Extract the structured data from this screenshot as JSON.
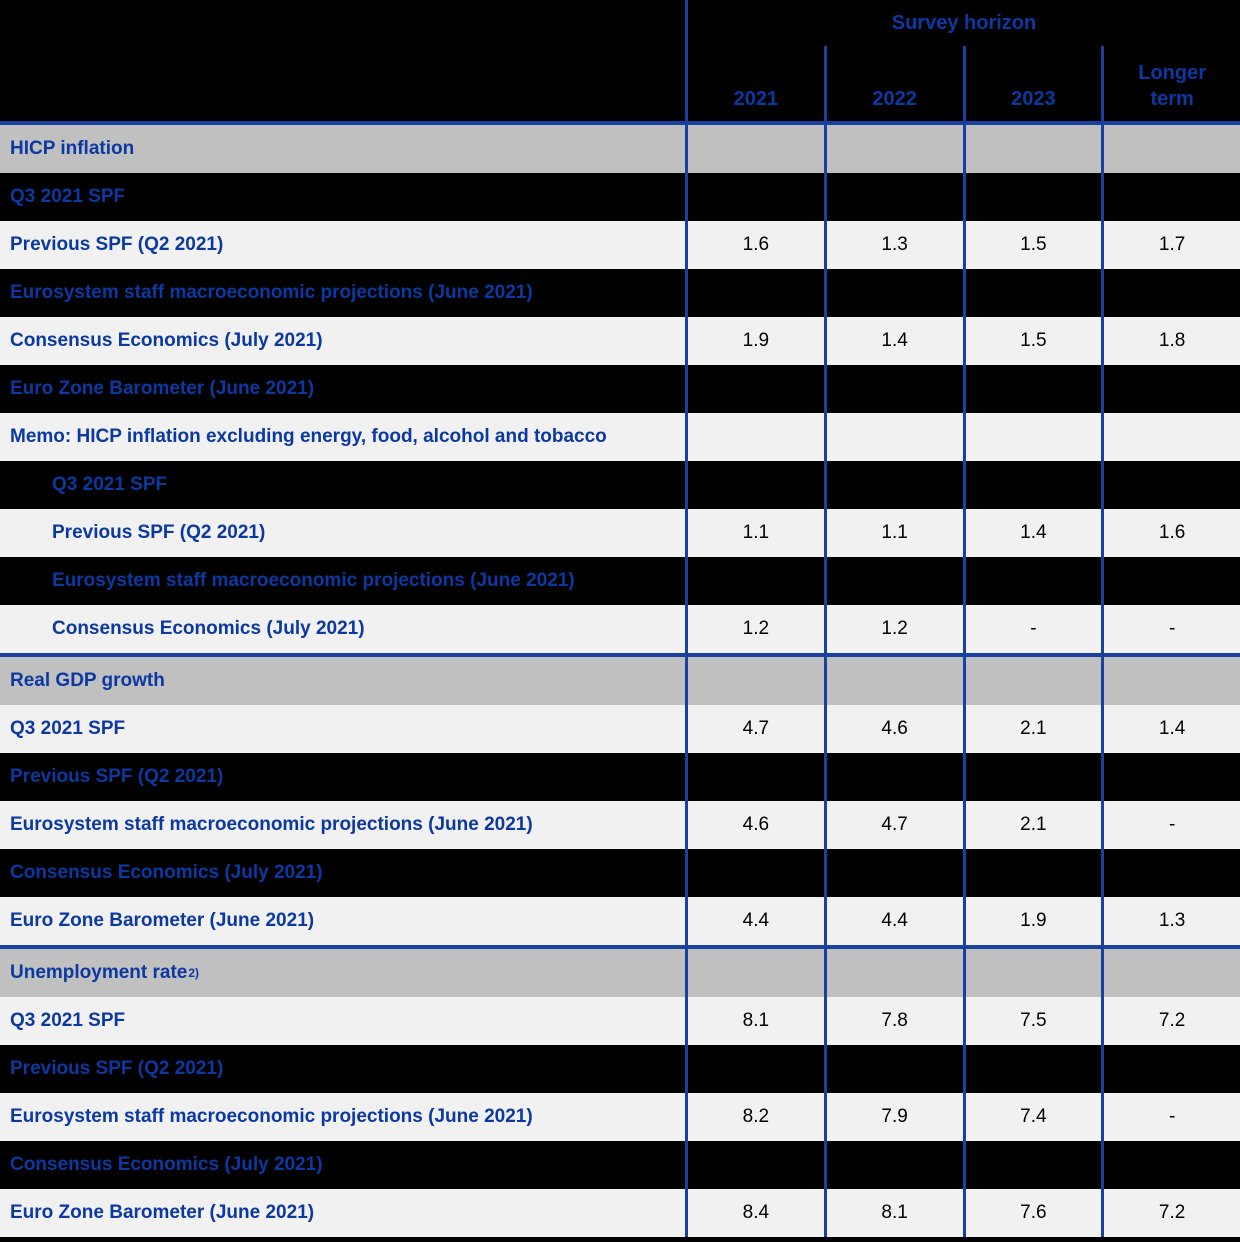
{
  "colors": {
    "accent_blue_text": "#0c38a2",
    "divider_blue": "#17409f",
    "section_row_gray": "#c0c0c0",
    "data_row_light": "#f1f1f1",
    "row_black": "#000000",
    "value_text": "#000000"
  },
  "header": {
    "title": "Survey horizon",
    "columns": [
      "2021",
      "2022",
      "2023",
      "Longer term"
    ]
  },
  "chart_data": {
    "type": "table",
    "title": "Survey horizon",
    "columns": [
      "2021",
      "2022",
      "2023",
      "Longer term"
    ],
    "rows": [
      {
        "label": "HICP inflation",
        "style": "section",
        "line_above": true,
        "values": [
          "",
          "",
          "",
          ""
        ]
      },
      {
        "label": "Q3 2021 SPF",
        "style": "black",
        "values": [
          "",
          "",
          "",
          ""
        ]
      },
      {
        "label": "Previous SPF (Q2 2021)",
        "style": "light",
        "values": [
          "1.6",
          "1.3",
          "1.5",
          "1.7"
        ]
      },
      {
        "label": "Eurosystem staff macroeconomic projections (June 2021)",
        "style": "black",
        "values": [
          "",
          "",
          "",
          ""
        ]
      },
      {
        "label": "Consensus Economics (July 2021)",
        "style": "light",
        "values": [
          "1.9",
          "1.4",
          "1.5",
          "1.8"
        ]
      },
      {
        "label": "Euro Zone Barometer (June 2021)",
        "style": "black",
        "values": [
          "",
          "",
          "",
          ""
        ]
      },
      {
        "label": "Memo: HICP inflation excluding energy, food, alcohol and tobacco",
        "style": "light",
        "values": [
          "",
          "",
          "",
          ""
        ]
      },
      {
        "label": "Q3 2021 SPF",
        "style": "black",
        "indent": true,
        "values": [
          "",
          "",
          "",
          ""
        ]
      },
      {
        "label": "Previous SPF (Q2 2021)",
        "style": "light",
        "indent": true,
        "values": [
          "1.1",
          "1.1",
          "1.4",
          "1.6"
        ]
      },
      {
        "label": "Eurosystem staff macroeconomic projections (June 2021)",
        "style": "black",
        "indent": true,
        "values": [
          "",
          "",
          "",
          ""
        ]
      },
      {
        "label": "Consensus Economics (July 2021)",
        "style": "light",
        "indent": true,
        "values": [
          "1.2",
          "1.2",
          "-",
          "-"
        ]
      },
      {
        "label": "Real GDP growth",
        "style": "section",
        "line_above": true,
        "values": [
          "",
          "",
          "",
          ""
        ]
      },
      {
        "label": "Q3 2021 SPF",
        "style": "light",
        "values": [
          "4.7",
          "4.6",
          "2.1",
          "1.4"
        ]
      },
      {
        "label": "Previous SPF (Q2 2021)",
        "style": "black",
        "values": [
          "",
          "",
          "",
          ""
        ]
      },
      {
        "label": "Eurosystem staff macroeconomic projections (June 2021)",
        "style": "light",
        "values": [
          "4.6",
          "4.7",
          "2.1",
          "-"
        ]
      },
      {
        "label": "Consensus Economics (July 2021)",
        "style": "black",
        "values": [
          "",
          "",
          "",
          ""
        ]
      },
      {
        "label": "Euro Zone Barometer (June 2021)",
        "style": "light",
        "values": [
          "4.4",
          "4.4",
          "1.9",
          "1.3"
        ]
      },
      {
        "label": "Unemployment rate",
        "sup": "2)",
        "style": "section",
        "line_above": true,
        "values": [
          "",
          "",
          "",
          ""
        ]
      },
      {
        "label": "Q3 2021 SPF",
        "style": "light",
        "values": [
          "8.1",
          "7.8",
          "7.5",
          "7.2"
        ]
      },
      {
        "label": "Previous SPF (Q2 2021)",
        "style": "black",
        "values": [
          "",
          "",
          "",
          ""
        ]
      },
      {
        "label": "Eurosystem staff macroeconomic projections (June 2021)",
        "style": "light",
        "values": [
          "8.2",
          "7.9",
          "7.4",
          "-"
        ]
      },
      {
        "label": "Consensus Economics (July 2021)",
        "style": "black",
        "values": [
          "",
          "",
          "",
          ""
        ]
      },
      {
        "label": "Euro Zone Barometer (June 2021)",
        "style": "light",
        "values": [
          "8.4",
          "8.1",
          "7.6",
          "7.2"
        ]
      }
    ]
  }
}
